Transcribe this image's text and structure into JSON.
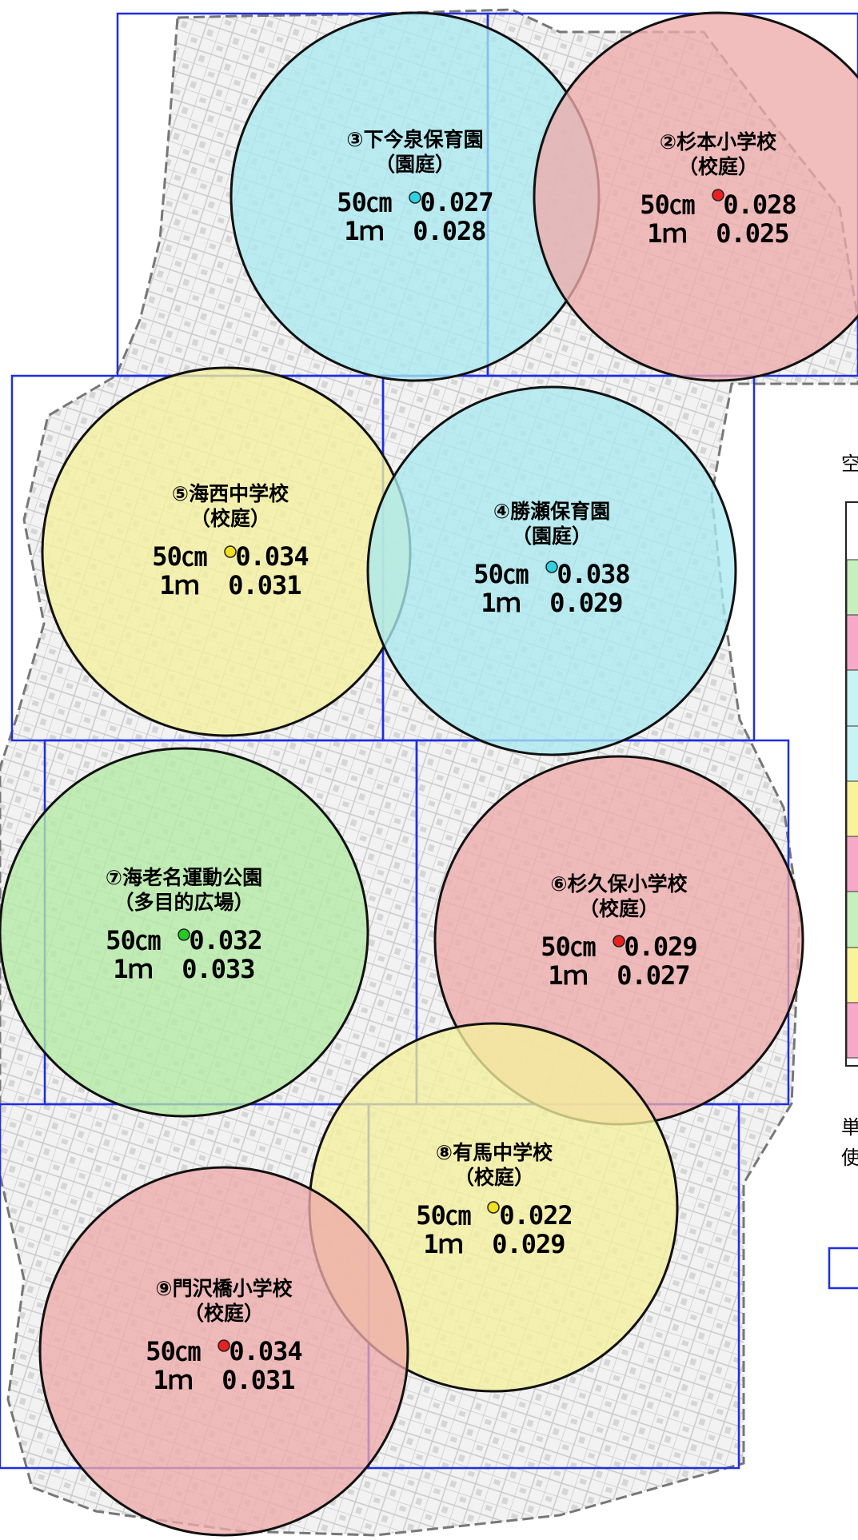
{
  "sites": [
    {
      "name": "③下今泉保育園",
      "place": "（園庭）",
      "r50": "50㎝  0.027",
      "r1": "1ｍ  0.028",
      "color": "#a9e9ef",
      "dot": "#2fd0e0"
    },
    {
      "name": "②杉本小学校",
      "place": "（校庭）",
      "r50": "50㎝  0.028",
      "r1": "1ｍ  0.025",
      "color": "#eeaaaa",
      "dot": "#e82020"
    },
    {
      "name": "⑤海西中学校",
      "place": "（校庭）",
      "r50": "50㎝  0.034",
      "r1": "1ｍ  0.031",
      "color": "#f5ef9c",
      "dot": "#f0e020"
    },
    {
      "name": "④勝瀬保育園",
      "place": "（園庭）",
      "r50": "50㎝  0.038",
      "r1": "1ｍ  0.029",
      "color": "#a9e9ef",
      "dot": "#2fd0e0"
    },
    {
      "name": "⑦海老名運動公園",
      "place": "（多目的広場）",
      "r50": "50㎝  0.032",
      "r1": "1ｍ  0.033",
      "color": "#b3eaa5",
      "dot": "#22cc22"
    },
    {
      "name": "⑥杉久保小学校",
      "place": "（校庭）",
      "r50": "50㎝  0.029",
      "r1": "1ｍ  0.027",
      "color": "#eeaaaa",
      "dot": "#e82020"
    },
    {
      "name": "⑧有馬中学校",
      "place": "（校庭）",
      "r50": "50㎝  0.022",
      "r1": "1ｍ  0.029",
      "color": "#f5ef9c",
      "dot": "#f0e020"
    },
    {
      "name": "⑨門沢橋小学校",
      "place": "（校庭）",
      "r50": "50㎝  0.034",
      "r1": "1ｍ  0.031",
      "color": "#eeaaaa",
      "dot": "#e82020"
    }
  ],
  "legend_swatches": [
    "#c8f0bf",
    "#f8a9c9",
    "#c8f3f6",
    "#c8f3f6",
    "#fbf39a",
    "#f8a9c9",
    "#c8f0bf",
    "#fbf39a",
    "#f8a9c9"
  ],
  "side_text": {
    "top": "空",
    "note1": "単",
    "note2": "使"
  }
}
